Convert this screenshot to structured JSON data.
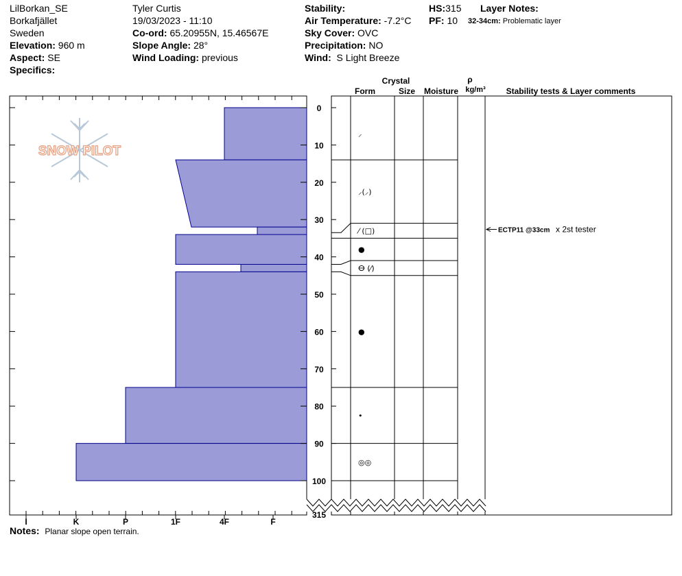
{
  "header": {
    "location": "LilBorkan_SE",
    "area": "Borkafjället",
    "country": "Sweden",
    "elevation_label": "Elevation:",
    "elevation_value": "960 m",
    "aspect_label": "Aspect:",
    "aspect_value": "SE",
    "specifics_label": "Specifics:",
    "observer": "Tyler Curtis",
    "datetime": "19/03/2023 - 11:10",
    "coord_label": "Co-ord:",
    "coord_value": "65.20955N, 15.46567E",
    "slope_label": "Slope Angle:",
    "slope_value": "28°",
    "wind_loading_label": "Wind Loading:",
    "wind_loading_value": "previous",
    "stability_label": "Stability:",
    "air_temp_label": "Air Temperature:",
    "air_temp_value": "-7.2°C",
    "sky_label": "Sky Cover:",
    "sky_value": "OVC",
    "precip_label": "Precipitation:",
    "precip_value": "NO",
    "wind_label": "Wind:",
    "wind_value": "S Light Breeze",
    "hs_label": "HS:",
    "hs_value": "315",
    "pf_label": "PF:",
    "pf_value": "10",
    "layer_notes_label": "Layer Notes:",
    "layer_note_depth": "32-34cm:",
    "layer_note_text": "Problematic layer"
  },
  "columns": {
    "crystal": "Crystal",
    "form": "Form",
    "size": "Size",
    "moisture": "Moisture",
    "rho": "ρ",
    "density_unit": "kg/m³",
    "stability_tests": "Stability tests & Layer comments"
  },
  "logo_text": "SNOW PILOT",
  "notes_label": "Notes:",
  "notes_value": "Planar slope open terrain.",
  "colors": {
    "bar_fill": "#9b9bd8",
    "bar_stroke": "#00008b",
    "logo": "#e8a080",
    "flake": "#b8c8d8"
  },
  "chart_data": {
    "type": "snow-profile",
    "depth_ticks": [
      "0",
      "10",
      "20",
      "30",
      "40",
      "50",
      "60",
      "70",
      "80",
      "90",
      "100",
      "315"
    ],
    "depth_range": [
      0,
      100
    ],
    "depth_end_label": "315",
    "hardness_scale": [
      "I",
      "K",
      "P",
      "1F",
      "4F",
      "F"
    ],
    "hardness_layers": [
      {
        "top": 0,
        "bottom": 14,
        "hardness_top": "4F",
        "hardness_bottom": "4F"
      },
      {
        "top": 14,
        "bottom": 32,
        "hardness_top": "1F",
        "hardness_bottom": "1F+"
      },
      {
        "top": 32,
        "bottom": 34,
        "hardness_top": "4F-F",
        "hardness_bottom": "4F-F"
      },
      {
        "top": 34,
        "bottom": 42,
        "hardness_top": "1F",
        "hardness_bottom": "1F"
      },
      {
        "top": 42,
        "bottom": 44,
        "hardness_top": "4F-",
        "hardness_bottom": "4F-"
      },
      {
        "top": 44,
        "bottom": 75,
        "hardness_top": "1F",
        "hardness_bottom": "1F"
      },
      {
        "top": 75,
        "bottom": 90,
        "hardness_top": "P",
        "hardness_bottom": "P"
      },
      {
        "top": 90,
        "bottom": 100,
        "hardness_top": "K",
        "hardness_bottom": "K"
      }
    ],
    "layer_boundaries": [
      14,
      31,
      35,
      41,
      45,
      75,
      90,
      100
    ],
    "grain_forms": [
      {
        "depth": 7,
        "symbol": "⸝"
      },
      {
        "depth": 22.5,
        "symbol": "⸝(⸝)"
      },
      {
        "depth": 33,
        "symbol": "⁄ (□)"
      },
      {
        "depth": 38,
        "symbol": "●"
      },
      {
        "depth": 43,
        "symbol": "ⴱ (⁄)"
      },
      {
        "depth": 60,
        "symbol": "●"
      },
      {
        "depth": 82.5,
        "symbol": "•"
      },
      {
        "depth": 95,
        "symbol": "◎◎"
      }
    ],
    "stability_tests": [
      {
        "depth": 33,
        "test": "ECTP11 @33cm",
        "comment": "x 2st tester"
      }
    ]
  }
}
